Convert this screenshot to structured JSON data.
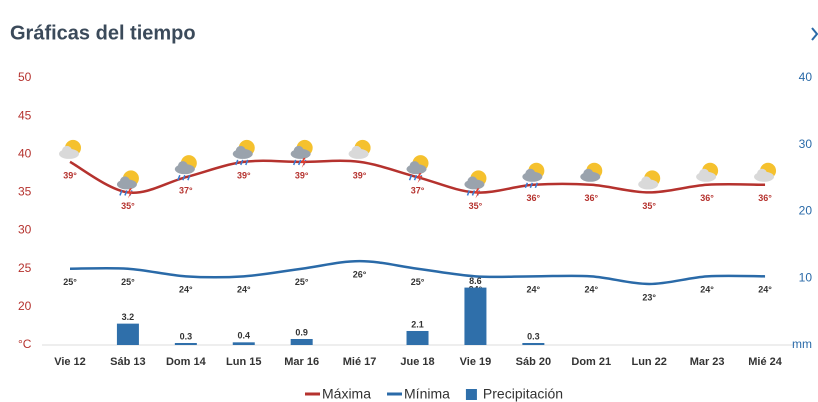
{
  "chart_data": {
    "type": "line",
    "title": "Gráficas del tiempo",
    "categories": [
      "Vie 12",
      "Sáb 13",
      "Dom 14",
      "Lun 15",
      "Mar 16",
      "Mié 17",
      "Jue 18",
      "Vie 19",
      "Sáb 20",
      "Dom 21",
      "Lun 22",
      "Mar 23",
      "Mié 24"
    ],
    "series": [
      {
        "name": "Máxima",
        "type": "line",
        "color": "#b5322e",
        "values": [
          39,
          35,
          37,
          39,
          39,
          39,
          37,
          35,
          36,
          36,
          35,
          36,
          36
        ],
        "value_labels": [
          "39°",
          "35°",
          "37°",
          "39°",
          "39°",
          "39°",
          "37°",
          "35°",
          "36°",
          "36°",
          "35°",
          "36°",
          "36°"
        ]
      },
      {
        "name": "Mínima",
        "type": "line",
        "color": "#2a6aa8",
        "values": [
          25,
          25,
          24,
          24,
          25,
          26,
          25,
          24,
          24,
          24,
          23,
          24,
          24
        ],
        "value_labels": [
          "25°",
          "25°",
          "24°",
          "24°",
          "25°",
          "26°",
          "25°",
          "24°",
          "24°",
          "24°",
          "23°",
          "24°",
          "24°"
        ]
      },
      {
        "name": "Precipitación",
        "type": "bar",
        "axis": "y2",
        "color": "#2f6faa",
        "values": [
          null,
          3.2,
          0.3,
          0.4,
          0.9,
          null,
          2.1,
          8.6,
          0.3,
          null,
          null,
          null,
          null
        ]
      }
    ],
    "ylim": [
      15,
      50
    ],
    "yticks": [
      {
        "value": 15,
        "label": "°C"
      },
      20,
      25,
      30,
      35,
      40,
      45,
      50
    ],
    "y2lim": [
      0,
      40
    ],
    "y2ticks": [
      {
        "value": 0,
        "label": "mm"
      },
      10,
      20,
      30,
      40
    ],
    "grid": false
  }
}
